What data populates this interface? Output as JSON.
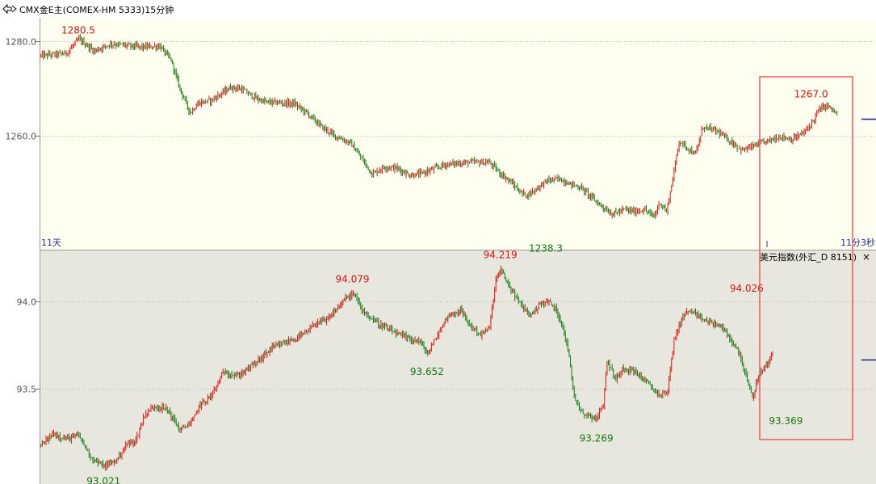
{
  "window": {
    "title": "CMX金E主(COMEX-HM 5333)15分钟"
  },
  "colors": {
    "up": "#dd1111",
    "down": "#117711",
    "bg_top": "#fffff0",
    "bg_bottom": "#e8e7de",
    "highlight": "#e85a5a",
    "axis_text": "#555555",
    "time_label": "#2a2a9c"
  },
  "chart_data": [
    {
      "type": "candlestick",
      "name": "gold",
      "ylim": [
        1236,
        1285
      ],
      "yticks": [
        1260.0,
        1280.0
      ],
      "tick_labels": [
        "1260.0",
        "1280.0"
      ],
      "time_labels": {
        "left": "11天",
        "right": "11分3秒"
      },
      "annotations": [
        {
          "label": "1280.5",
          "value": 1280.5,
          "index": 30,
          "kind": "high"
        },
        {
          "label": "1238.3",
          "value": 1238.3,
          "index": 400,
          "kind": "low"
        },
        {
          "label": "1267.0",
          "value": 1267.0,
          "index": 610,
          "kind": "high"
        }
      ],
      "path": [
        [
          0,
          1277
        ],
        [
          20,
          1277.5
        ],
        [
          30,
          1280.5
        ],
        [
          42,
          1278
        ],
        [
          55,
          1279.5
        ],
        [
          80,
          1278.8
        ],
        [
          94,
          1279
        ],
        [
          103,
          1276
        ],
        [
          110,
          1270
        ],
        [
          118,
          1265
        ],
        [
          125,
          1267
        ],
        [
          135,
          1267.6
        ],
        [
          150,
          1270.3
        ],
        [
          158,
          1270
        ],
        [
          170,
          1268
        ],
        [
          178,
          1267.2
        ],
        [
          200,
          1266.9
        ],
        [
          210,
          1265
        ],
        [
          222,
          1262
        ],
        [
          233,
          1260
        ],
        [
          245,
          1258.5
        ],
        [
          255,
          1254.8
        ],
        [
          262,
          1252
        ],
        [
          272,
          1253.5
        ],
        [
          282,
          1253.2
        ],
        [
          292,
          1251.7
        ],
        [
          300,
          1252
        ],
        [
          320,
          1254
        ],
        [
          340,
          1254.5
        ],
        [
          355,
          1254.4
        ],
        [
          362,
          1252.5
        ],
        [
          372,
          1250.2
        ],
        [
          380,
          1248
        ],
        [
          385,
          1247.5
        ],
        [
          400,
          1250.5
        ],
        [
          410,
          1251
        ],
        [
          418,
          1250
        ],
        [
          428,
          1249
        ],
        [
          440,
          1246
        ],
        [
          452,
          1243.5
        ],
        [
          462,
          1244.5
        ],
        [
          470,
          1244
        ],
        [
          477,
          1244.5
        ],
        [
          485,
          1243
        ],
        [
          490,
          1246
        ],
        [
          495,
          1244
        ],
        [
          500,
          1251
        ],
        [
          505,
          1259
        ],
        [
          512,
          1257.4
        ],
        [
          518,
          1256.1
        ],
        [
          524,
          1262
        ],
        [
          535,
          1261
        ],
        [
          545,
          1259
        ],
        [
          555,
          1257
        ],
        [
          565,
          1258
        ],
        [
          575,
          1259
        ],
        [
          585,
          1259.9
        ],
        [
          595,
          1259.3
        ],
        [
          605,
          1261
        ],
        [
          612,
          1263.6
        ],
        [
          615,
          1265.4
        ],
        [
          622,
          1266.5
        ],
        [
          630,
          1264.6
        ]
      ]
    },
    {
      "type": "candlestick",
      "name": "美元指数(外汇_D 8151)",
      "ylim": [
        92.95,
        94.3
      ],
      "yticks": [
        93.5,
        94.0
      ],
      "tick_labels": [
        "93.5",
        "94.0"
      ],
      "annotations": [
        {
          "label": "94.079",
          "value": 94.079,
          "index": 247,
          "kind": "high"
        },
        {
          "label": "94.219",
          "value": 94.219,
          "index": 364,
          "kind": "high"
        },
        {
          "label": "94.026",
          "value": 94.026,
          "index": 559,
          "kind": "high"
        },
        {
          "label": "93.021",
          "value": 93.021,
          "index": 50,
          "kind": "low"
        },
        {
          "label": "93.652",
          "value": 93.652,
          "index": 306,
          "kind": "low"
        },
        {
          "label": "93.269",
          "value": 93.269,
          "index": 440,
          "kind": "low"
        },
        {
          "label": "93.369",
          "value": 93.369,
          "index": 590,
          "kind": "low"
        }
      ],
      "path": [
        [
          0,
          93.17
        ],
        [
          10,
          93.24
        ],
        [
          20,
          93.21
        ],
        [
          30,
          93.23
        ],
        [
          40,
          93.1
        ],
        [
          50,
          93.05
        ],
        [
          60,
          93.09
        ],
        [
          68,
          93.18
        ],
        [
          75,
          93.2
        ],
        [
          82,
          93.35
        ],
        [
          90,
          93.4
        ],
        [
          100,
          93.38
        ],
        [
          110,
          93.26
        ],
        [
          120,
          93.31
        ],
        [
          125,
          93.4
        ],
        [
          135,
          93.46
        ],
        [
          145,
          93.6
        ],
        [
          155,
          93.57
        ],
        [
          165,
          93.62
        ],
        [
          175,
          93.68
        ],
        [
          182,
          93.73
        ],
        [
          192,
          93.76
        ],
        [
          202,
          93.79
        ],
        [
          210,
          93.82
        ],
        [
          218,
          93.88
        ],
        [
          226,
          93.89
        ],
        [
          233,
          93.95
        ],
        [
          240,
          94.01
        ],
        [
          247,
          94.05
        ],
        [
          253,
          93.97
        ],
        [
          260,
          93.91
        ],
        [
          270,
          93.86
        ],
        [
          280,
          93.82
        ],
        [
          290,
          93.79
        ],
        [
          300,
          93.77
        ],
        [
          306,
          93.7
        ],
        [
          314,
          93.81
        ],
        [
          322,
          93.92
        ],
        [
          332,
          93.95
        ],
        [
          340,
          93.86
        ],
        [
          348,
          93.81
        ],
        [
          355,
          93.85
        ],
        [
          360,
          94.13
        ],
        [
          364,
          94.18
        ],
        [
          372,
          94.07
        ],
        [
          380,
          93.98
        ],
        [
          388,
          93.92
        ],
        [
          395,
          93.99
        ],
        [
          402,
          94.0
        ],
        [
          407,
          93.96
        ],
        [
          413,
          93.86
        ],
        [
          417,
          93.73
        ],
        [
          422,
          93.45
        ],
        [
          430,
          93.35
        ],
        [
          440,
          93.33
        ],
        [
          445,
          93.41
        ],
        [
          448,
          93.66
        ],
        [
          455,
          93.55
        ],
        [
          460,
          93.62
        ],
        [
          470,
          93.6
        ],
        [
          480,
          93.53
        ],
        [
          490,
          93.46
        ],
        [
          496,
          93.49
        ],
        [
          501,
          93.78
        ],
        [
          508,
          93.92
        ],
        [
          514,
          93.95
        ],
        [
          520,
          93.91
        ],
        [
          530,
          93.88
        ],
        [
          538,
          93.86
        ],
        [
          545,
          93.79
        ],
        [
          553,
          93.7
        ],
        [
          563,
          93.44
        ],
        [
          568,
          93.58
        ],
        [
          575,
          93.64
        ],
        [
          579,
          93.7
        ]
      ]
    }
  ]
}
